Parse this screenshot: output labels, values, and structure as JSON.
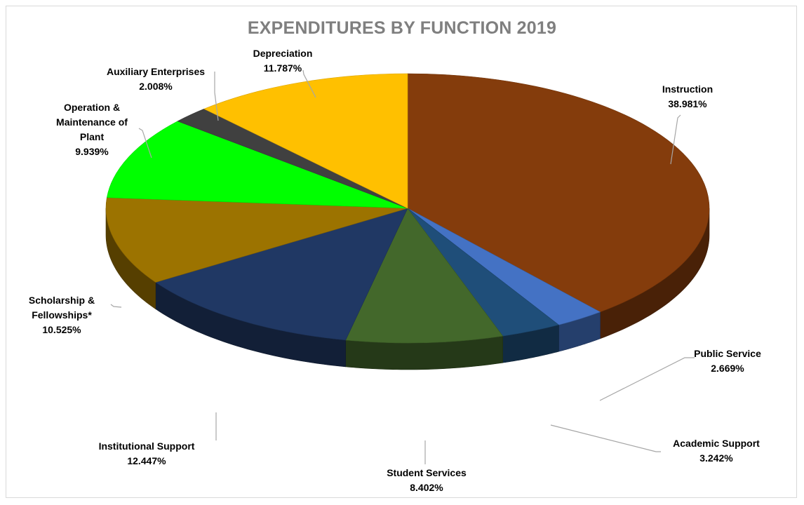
{
  "chart_data": {
    "type": "pie",
    "title": "EXPENDITURES BY FUNCTION 2019",
    "slices": [
      {
        "name": "Instruction",
        "value": 38.981,
        "label": "38.981%",
        "color": "#843c0c"
      },
      {
        "name": "Public Service",
        "value": 2.669,
        "label": "2.669%",
        "color": "#4472c4"
      },
      {
        "name": "Academic Support",
        "value": 3.242,
        "label": "3.242%",
        "color": "#1f4e79"
      },
      {
        "name": "Student Services",
        "value": 8.402,
        "label": "8.402%",
        "color": "#43682b"
      },
      {
        "name": "Institutional Support",
        "value": 12.447,
        "label": "12.447%",
        "color": "#203864"
      },
      {
        "name": "Scholarship & Fellowships*",
        "value": 10.525,
        "label": "10.525%",
        "color": "#9c7300"
      },
      {
        "name": "Operation & Maintenance of Plant",
        "value": 9.939,
        "label": "9.939%",
        "color": "#00ff00"
      },
      {
        "name": "Auxiliary Enterprises",
        "value": 2.008,
        "label": "2.008%",
        "color": "#404040"
      },
      {
        "name": "Depreciation",
        "value": 11.787,
        "label": "11.787%",
        "color": "#ffc000"
      }
    ]
  }
}
